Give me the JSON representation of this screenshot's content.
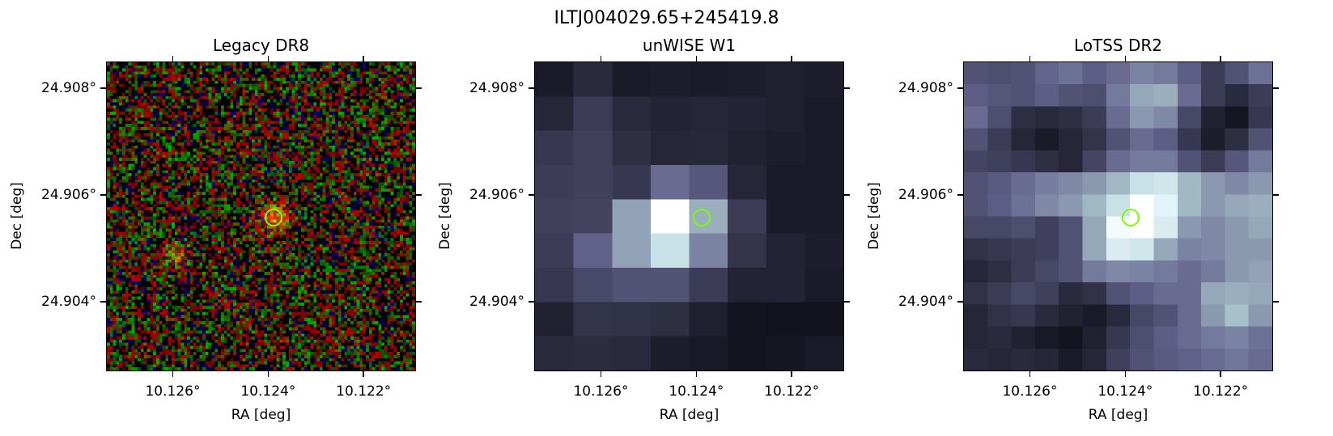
{
  "figure": {
    "title": "ILTJ004029.65+245419.8"
  },
  "marker_color": "#7cfc00",
  "chart_data": [
    {
      "type": "heatmap",
      "title": "Legacy DR8",
      "xlabel": "RA [deg]",
      "ylabel": "Dec [deg]",
      "xticks": [
        "10.126°",
        "10.124°",
        "10.122°"
      ],
      "yticks": [
        "24.908°",
        "24.906°",
        "24.904°"
      ],
      "xlim": [
        10.1274,
        10.1209
      ],
      "ylim": [
        24.9027,
        24.9085
      ],
      "marker": {
        "ra": 10.1239,
        "dec": 24.9056
      },
      "colormap": "rgb-composite"
    },
    {
      "type": "heatmap",
      "title": "unWISE W1",
      "xlabel": "RA [deg]",
      "ylabel": "Dec [deg]",
      "xticks": [
        "10.126°",
        "10.124°",
        "10.122°"
      ],
      "yticks": [
        "24.908°",
        "24.906°",
        "24.904°"
      ],
      "xlim": [
        10.1274,
        10.1209
      ],
      "ylim": [
        24.9027,
        24.9085
      ],
      "marker": {
        "ra": 10.1239,
        "dec": 24.9056
      },
      "colormap": "bone",
      "grid": [
        [
          0.05,
          0.12,
          0.05,
          0.06,
          0.05,
          0.06,
          0.07,
          0.06
        ],
        [
          0.1,
          0.2,
          0.12,
          0.09,
          0.1,
          0.09,
          0.07,
          0.05
        ],
        [
          0.18,
          0.22,
          0.14,
          0.1,
          0.11,
          0.08,
          0.06,
          0.05
        ],
        [
          0.2,
          0.22,
          0.18,
          0.4,
          0.32,
          0.1,
          0.05,
          0.05
        ],
        [
          0.22,
          0.23,
          0.58,
          1.0,
          0.62,
          0.2,
          0.05,
          0.05
        ],
        [
          0.2,
          0.36,
          0.58,
          0.8,
          0.48,
          0.16,
          0.09,
          0.06
        ],
        [
          0.18,
          0.26,
          0.3,
          0.3,
          0.2,
          0.09,
          0.09,
          0.05
        ],
        [
          0.08,
          0.16,
          0.15,
          0.14,
          0.07,
          0.02,
          0.01,
          0.01
        ],
        [
          0.12,
          0.13,
          0.12,
          0.06,
          0.04,
          0.02,
          0.03,
          0.05
        ]
      ]
    },
    {
      "type": "heatmap",
      "title": "LoTSS DR2",
      "xlabel": "RA [deg]",
      "ylabel": "Dec [deg]",
      "xticks": [
        "10.126°",
        "10.124°",
        "10.122°"
      ],
      "yticks": [
        "24.908°",
        "24.906°",
        "24.904°"
      ],
      "xlim": [
        10.1274,
        10.1209
      ],
      "ylim": [
        24.9027,
        24.9085
      ],
      "marker": {
        "ra": 10.1239,
        "dec": 24.9056
      },
      "colormap": "bone",
      "grid": [
        [
          0.3,
          0.28,
          0.3,
          0.38,
          0.42,
          0.35,
          0.4,
          0.48,
          0.45,
          0.35,
          0.2,
          0.3,
          0.42
        ],
        [
          0.35,
          0.32,
          0.3,
          0.35,
          0.3,
          0.28,
          0.45,
          0.6,
          0.62,
          0.4,
          0.2,
          0.12,
          0.2
        ],
        [
          0.4,
          0.28,
          0.14,
          0.12,
          0.14,
          0.2,
          0.4,
          0.55,
          0.5,
          0.25,
          0.08,
          0.03,
          0.18
        ],
        [
          0.3,
          0.2,
          0.1,
          0.05,
          0.1,
          0.16,
          0.3,
          0.4,
          0.35,
          0.18,
          0.06,
          0.14,
          0.3
        ],
        [
          0.24,
          0.22,
          0.18,
          0.14,
          0.1,
          0.24,
          0.4,
          0.45,
          0.45,
          0.3,
          0.2,
          0.32,
          0.45
        ],
        [
          0.3,
          0.34,
          0.4,
          0.46,
          0.5,
          0.55,
          0.65,
          0.8,
          0.82,
          0.65,
          0.55,
          0.5,
          0.55
        ],
        [
          0.3,
          0.35,
          0.42,
          0.5,
          0.55,
          0.65,
          0.8,
          0.95,
          0.88,
          0.65,
          0.55,
          0.6,
          0.62
        ],
        [
          0.25,
          0.25,
          0.28,
          0.22,
          0.3,
          0.6,
          0.92,
          1.0,
          0.85,
          0.55,
          0.5,
          0.55,
          0.6
        ],
        [
          0.15,
          0.18,
          0.2,
          0.22,
          0.3,
          0.6,
          0.85,
          0.82,
          0.6,
          0.48,
          0.5,
          0.55,
          0.55
        ],
        [
          0.1,
          0.14,
          0.2,
          0.25,
          0.3,
          0.45,
          0.5,
          0.48,
          0.45,
          0.4,
          0.45,
          0.55,
          0.58
        ],
        [
          0.15,
          0.2,
          0.25,
          0.22,
          0.12,
          0.15,
          0.3,
          0.35,
          0.4,
          0.4,
          0.6,
          0.62,
          0.6
        ],
        [
          0.1,
          0.15,
          0.18,
          0.12,
          0.08,
          0.05,
          0.12,
          0.25,
          0.3,
          0.4,
          0.55,
          0.68,
          0.55
        ],
        [
          0.1,
          0.12,
          0.08,
          0.04,
          0.02,
          0.08,
          0.18,
          0.28,
          0.35,
          0.4,
          0.45,
          0.48,
          0.42
        ],
        [
          0.12,
          0.1,
          0.12,
          0.1,
          0.05,
          0.1,
          0.22,
          0.3,
          0.34,
          0.36,
          0.4,
          0.44,
          0.4
        ]
      ]
    }
  ]
}
